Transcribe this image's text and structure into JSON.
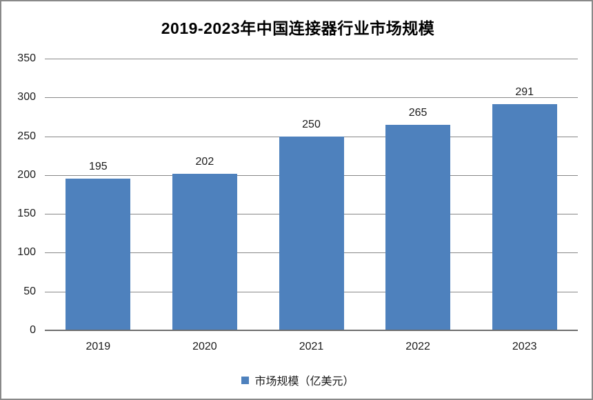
{
  "chart_data": {
    "type": "bar",
    "title": "2019-2023年中国连接器行业市场规模",
    "categories": [
      "2019",
      "2020",
      "2021",
      "2022",
      "2023"
    ],
    "values": [
      195,
      202,
      250,
      265,
      291
    ],
    "series": [
      {
        "name": "市场规模（亿美元）",
        "values": [
          195,
          202,
          250,
          265,
          291
        ]
      }
    ],
    "data_labels": [
      "195",
      "202",
      "250",
      "265",
      "291"
    ],
    "legend": {
      "label": "市场规模（亿美元）",
      "position": "bottom",
      "marker": "square"
    },
    "xlabel": "",
    "ylabel": "",
    "ylim": [
      0,
      350
    ],
    "yticks": [
      0,
      50,
      100,
      150,
      200,
      250,
      300,
      350
    ],
    "grid": true,
    "colors": {
      "bar": "#4e81bd",
      "gridline": "#878787",
      "axis": "#6e6e6e",
      "border": "#898989",
      "text": "#000000",
      "background": "#ffffff"
    }
  }
}
